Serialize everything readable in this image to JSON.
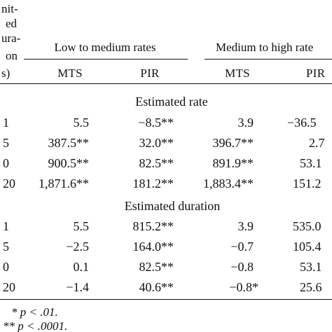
{
  "stub_header_fragments": [
    "nit-",
    "ed",
    "ura-",
    "on",
    "s)"
  ],
  "group_headers": [
    "Low to medium rates",
    "Medium to high rate"
  ],
  "column_headers": [
    "MTS",
    "PIR",
    "MTS",
    "PIR"
  ],
  "sections": [
    {
      "title": "Estimated rate",
      "rows": [
        {
          "stub": "1",
          "cells": [
            "5.5",
            "−8.5**",
            "3.9",
            "−36.5"
          ]
        },
        {
          "stub": "5",
          "cells": [
            "387.5**",
            "32.0**",
            "396.7**",
            "2.7"
          ]
        },
        {
          "stub": "0",
          "cells": [
            "900.5**",
            "82.5**",
            "891.9**",
            "53.1"
          ]
        },
        {
          "stub": "20",
          "cells": [
            "1,871.6**",
            "181.2**",
            "1,883.4**",
            "151.2"
          ]
        }
      ]
    },
    {
      "title": "Estimated duration",
      "rows": [
        {
          "stub": "1",
          "cells": [
            "5.5",
            "815.2**",
            "3.9",
            "535.0"
          ]
        },
        {
          "stub": "5",
          "cells": [
            "−2.5",
            "164.0**",
            "−0.7",
            "105.4"
          ]
        },
        {
          "stub": "0",
          "cells": [
            "0.1",
            "82.5**",
            "−0.8",
            "53.1"
          ]
        },
        {
          "stub": "20",
          "cells": [
            "−1.4",
            "40.6**",
            "−0.8*",
            "25.6"
          ]
        }
      ]
    }
  ],
  "footnotes": [
    "* p < .01.",
    "** p < .0001."
  ]
}
